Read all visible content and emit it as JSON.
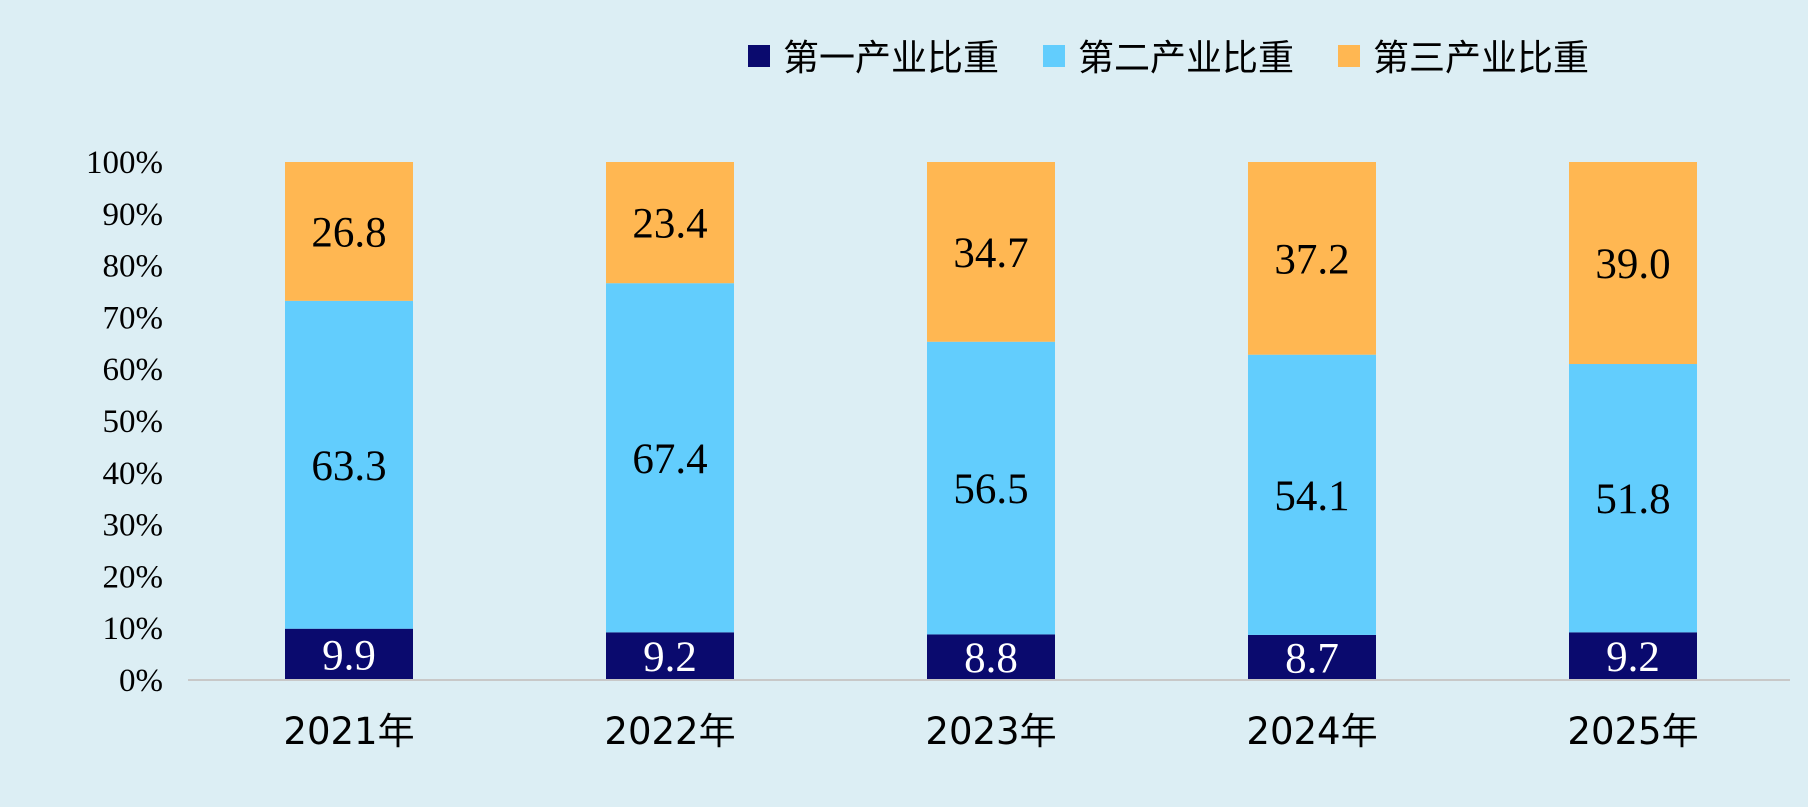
{
  "chart_data": {
    "type": "bar",
    "stacked": true,
    "percent_stacked": true,
    "categories": [
      "2021年",
      "2022年",
      "2023年",
      "2024年",
      "2025年"
    ],
    "series": [
      {
        "name": "第一产业比重",
        "color": "#0a0a6e",
        "label_color": "#ffffff",
        "values": [
          9.9,
          9.2,
          8.8,
          8.7,
          9.2
        ]
      },
      {
        "name": "第二产业比重",
        "color": "#62cdfd",
        "label_color": "#000000",
        "values": [
          63.3,
          67.4,
          56.5,
          54.1,
          51.8
        ]
      },
      {
        "name": "第三产业比重",
        "color": "#ffb752",
        "label_color": "#000000",
        "values": [
          26.8,
          23.4,
          34.7,
          37.2,
          39.0
        ]
      }
    ],
    "y_ticks": [
      "0%",
      "10%",
      "20%",
      "30%",
      "40%",
      "50%",
      "60%",
      "70%",
      "80%",
      "90%",
      "100%"
    ],
    "ylim": [
      0,
      100
    ],
    "grid": false,
    "legend_position": "top-right",
    "background": "#dceef4",
    "axis_color": "#c8c8c8"
  }
}
